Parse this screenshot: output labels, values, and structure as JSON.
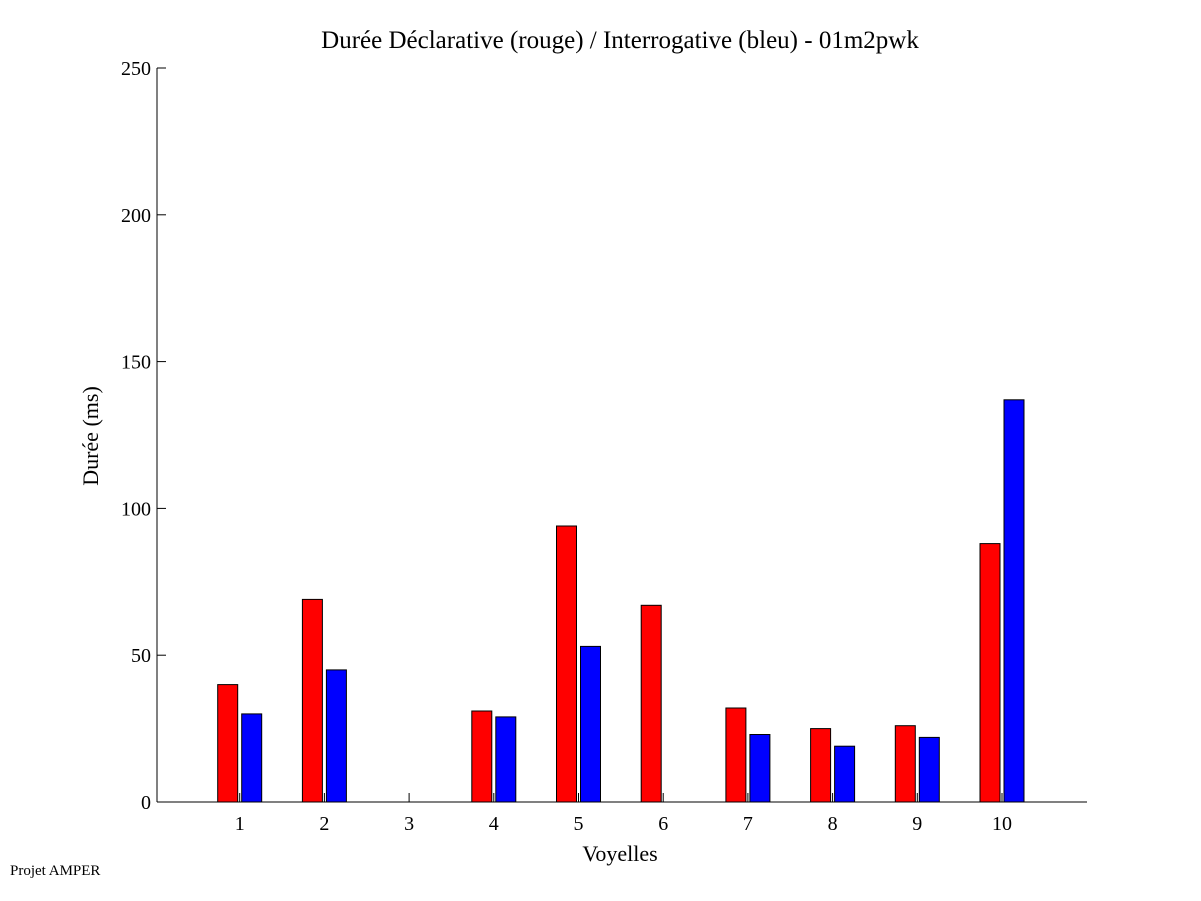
{
  "chart_data": {
    "type": "bar",
    "title": "Durée Déclarative (rouge) / Interrogative (bleu) - 01m2pwk",
    "xlabel": "Voyelles",
    "ylabel": "Durée (ms)",
    "categories": [
      "1",
      "2",
      "3",
      "4",
      "5",
      "6",
      "7",
      "8",
      "9",
      "10"
    ],
    "yticks": [
      "0",
      "50",
      "100",
      "150",
      "200",
      "250"
    ],
    "ylim": [
      0,
      250
    ],
    "grid": false,
    "series": [
      {
        "color": "#ff0000",
        "values": [
          40,
          69,
          0,
          31,
          94,
          67,
          32,
          25,
          26,
          88
        ]
      },
      {
        "color": "#0000ff",
        "values": [
          30,
          45,
          0,
          29,
          53,
          0,
          23,
          19,
          22,
          137
        ]
      }
    ]
  },
  "footer": {
    "text": "Projet AMPER"
  }
}
